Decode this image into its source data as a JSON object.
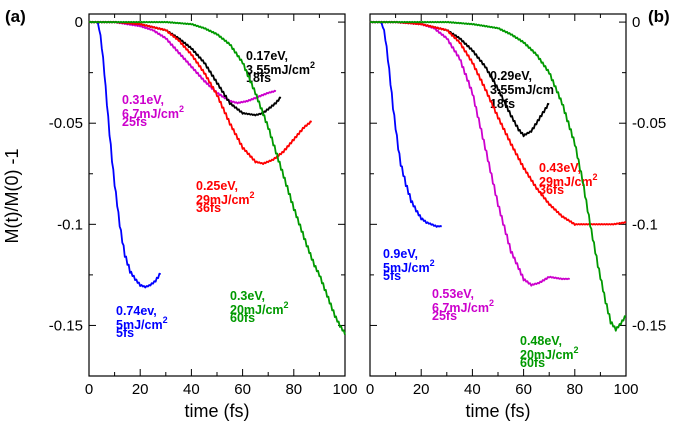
{
  "chart_data": [
    {
      "panel": "(a)",
      "type": "line",
      "xlabel": "time (fs)",
      "ylabel": "M(t)/M(0) -1",
      "xlim": [
        0,
        100
      ],
      "ylim": [
        -0.175,
        0.004
      ],
      "xticks": [
        0,
        20,
        40,
        60,
        80,
        100
      ],
      "yticks": [
        0,
        -0.05,
        -0.1,
        -0.15
      ],
      "ytick_labels": [
        "0",
        "-0.05",
        "-0.1",
        "-0.15"
      ],
      "ytick_side": "left",
      "grid": false,
      "series": [
        {
          "color": "#0000ff",
          "label_lines": [
            "0.74ev,",
            "5mJ/cm",
            "5fs"
          ],
          "label_sup": "2",
          "points": [
            [
              0,
              0
            ],
            [
              3,
              0
            ],
            [
              4,
              -0.003
            ],
            [
              5,
              -0.012
            ],
            [
              6,
              -0.025
            ],
            [
              7,
              -0.04
            ],
            [
              8,
              -0.055
            ],
            [
              9,
              -0.068
            ],
            [
              10,
              -0.08
            ],
            [
              11,
              -0.09
            ],
            [
              12,
              -0.1
            ],
            [
              13,
              -0.108
            ],
            [
              14,
              -0.115
            ],
            [
              16,
              -0.123
            ],
            [
              18,
              -0.127
            ],
            [
              20,
              -0.13
            ],
            [
              22,
              -0.131
            ],
            [
              24,
              -0.13
            ],
            [
              26,
              -0.128
            ],
            [
              27,
              -0.126
            ],
            [
              28,
              -0.124
            ]
          ]
        },
        {
          "color": "#cc00cc",
          "label_lines": [
            "0.31eV,",
            "6.7mJ/cm",
            "25fs"
          ],
          "label_sup": "2",
          "points": [
            [
              0,
              0
            ],
            [
              10,
              0
            ],
            [
              15,
              -0.001
            ],
            [
              20,
              -0.002
            ],
            [
              25,
              -0.004
            ],
            [
              30,
              -0.008
            ],
            [
              35,
              -0.015
            ],
            [
              40,
              -0.022
            ],
            [
              45,
              -0.029
            ],
            [
              50,
              -0.035
            ],
            [
              55,
              -0.039
            ],
            [
              58,
              -0.04
            ],
            [
              62,
              -0.039
            ],
            [
              66,
              -0.037
            ],
            [
              70,
              -0.035
            ],
            [
              73,
              -0.034
            ]
          ]
        },
        {
          "color": "#000000",
          "label_lines": [
            "0.17eV,",
            "3.55mJ/cm",
            "18fs"
          ],
          "label_sup": "2",
          "points": [
            [
              0,
              0
            ],
            [
              10,
              0
            ],
            [
              20,
              -0.001
            ],
            [
              30,
              -0.004
            ],
            [
              35,
              -0.008
            ],
            [
              40,
              -0.013
            ],
            [
              45,
              -0.02
            ],
            [
              50,
              -0.03
            ],
            [
              55,
              -0.04
            ],
            [
              60,
              -0.045
            ],
            [
              65,
              -0.046
            ],
            [
              68,
              -0.045
            ],
            [
              70,
              -0.043
            ],
            [
              73,
              -0.04
            ],
            [
              75,
              -0.037
            ]
          ]
        },
        {
          "color": "#ff0000",
          "label_lines": [
            "0.25eV,",
            "29mJ/cm",
            "36fs"
          ],
          "label_sup": "2",
          "points": [
            [
              0,
              0
            ],
            [
              10,
              0
            ],
            [
              20,
              -0.001
            ],
            [
              30,
              -0.004
            ],
            [
              35,
              -0.009
            ],
            [
              40,
              -0.016
            ],
            [
              45,
              -0.025
            ],
            [
              50,
              -0.036
            ],
            [
              55,
              -0.05
            ],
            [
              60,
              -0.062
            ],
            [
              65,
              -0.069
            ],
            [
              68,
              -0.07
            ],
            [
              72,
              -0.068
            ],
            [
              76,
              -0.064
            ],
            [
              80,
              -0.058
            ],
            [
              84,
              -0.052
            ],
            [
              87,
              -0.049
            ]
          ]
        },
        {
          "color": "#009900",
          "label_lines": [
            "0.3eV,",
            "20mJ/cm",
            "60fs"
          ],
          "label_sup": "2",
          "points": [
            [
              0,
              0
            ],
            [
              30,
              0
            ],
            [
              40,
              -0.001
            ],
            [
              45,
              -0.003
            ],
            [
              50,
              -0.006
            ],
            [
              55,
              -0.011
            ],
            [
              60,
              -0.02
            ],
            [
              65,
              -0.035
            ],
            [
              70,
              -0.052
            ],
            [
              75,
              -0.072
            ],
            [
              80,
              -0.092
            ],
            [
              85,
              -0.11
            ],
            [
              88,
              -0.12
            ],
            [
              90,
              -0.125
            ],
            [
              93,
              -0.135
            ],
            [
              96,
              -0.145
            ],
            [
              98,
              -0.15
            ],
            [
              100,
              -0.154
            ]
          ]
        }
      ]
    },
    {
      "panel": "(b)",
      "type": "line",
      "xlabel": "time (fs)",
      "ylabel": "",
      "xlim": [
        0,
        100
      ],
      "ylim": [
        -0.175,
        0.004
      ],
      "xticks": [
        0,
        20,
        40,
        60,
        80,
        100
      ],
      "yticks": [
        0,
        -0.05,
        -0.1,
        -0.15
      ],
      "ytick_labels": [
        "0",
        "-0.05",
        "-0.1",
        "-0.15"
      ],
      "ytick_side": "right",
      "grid": false,
      "series": [
        {
          "color": "#0000ff",
          "label_lines": [
            "0.9eV,",
            "5mJ/cm",
            "5fs"
          ],
          "label_sup": "2",
          "points": [
            [
              0,
              0
            ],
            [
              4,
              0
            ],
            [
              5,
              -0.002
            ],
            [
              6,
              -0.008
            ],
            [
              7,
              -0.018
            ],
            [
              8,
              -0.03
            ],
            [
              9,
              -0.042
            ],
            [
              10,
              -0.052
            ],
            [
              11,
              -0.062
            ],
            [
              12,
              -0.07
            ],
            [
              14,
              -0.08
            ],
            [
              16,
              -0.088
            ],
            [
              18,
              -0.093
            ],
            [
              20,
              -0.097
            ],
            [
              22,
              -0.099
            ],
            [
              24,
              -0.1
            ],
            [
              26,
              -0.101
            ],
            [
              28,
              -0.101
            ]
          ]
        },
        {
          "color": "#000000",
          "label_lines": [
            "0.29eV,",
            "3.55mJ/cm",
            "18fs"
          ],
          "label_sup": "",
          "points": [
            [
              0,
              0
            ],
            [
              10,
              0
            ],
            [
              20,
              -0.001
            ],
            [
              30,
              -0.004
            ],
            [
              35,
              -0.008
            ],
            [
              40,
              -0.014
            ],
            [
              45,
              -0.022
            ],
            [
              50,
              -0.033
            ],
            [
              55,
              -0.046
            ],
            [
              58,
              -0.053
            ],
            [
              60,
              -0.056
            ],
            [
              63,
              -0.054
            ],
            [
              66,
              -0.048
            ],
            [
              70,
              -0.04
            ]
          ]
        },
        {
          "color": "#cc00cc",
          "label_lines": [
            "0.53eV,",
            "6.7mJ/cm",
            "25fs"
          ],
          "label_sup": "2",
          "points": [
            [
              0,
              0
            ],
            [
              10,
              0
            ],
            [
              20,
              -0.001
            ],
            [
              25,
              -0.003
            ],
            [
              30,
              -0.008
            ],
            [
              35,
              -0.018
            ],
            [
              40,
              -0.035
            ],
            [
              45,
              -0.062
            ],
            [
              50,
              -0.09
            ],
            [
              55,
              -0.113
            ],
            [
              60,
              -0.127
            ],
            [
              63,
              -0.13
            ],
            [
              66,
              -0.129
            ],
            [
              70,
              -0.126
            ],
            [
              75,
              -0.127
            ],
            [
              78,
              -0.127
            ]
          ]
        },
        {
          "color": "#ff0000",
          "label_lines": [
            "0.43eV,",
            "29mJ/cm",
            "36fs"
          ],
          "label_sup": "2",
          "points": [
            [
              0,
              0
            ],
            [
              10,
              0
            ],
            [
              20,
              -0.001
            ],
            [
              30,
              -0.004
            ],
            [
              35,
              -0.01
            ],
            [
              40,
              -0.02
            ],
            [
              45,
              -0.033
            ],
            [
              50,
              -0.047
            ],
            [
              55,
              -0.06
            ],
            [
              60,
              -0.072
            ],
            [
              65,
              -0.082
            ],
            [
              70,
              -0.09
            ],
            [
              75,
              -0.096
            ],
            [
              80,
              -0.1
            ],
            [
              85,
              -0.1
            ],
            [
              90,
              -0.1
            ],
            [
              95,
              -0.1
            ],
            [
              100,
              -0.099
            ]
          ]
        },
        {
          "color": "#009900",
          "label_lines": [
            "0.48eV,",
            "20mJ/cm",
            "60fs"
          ],
          "label_sup": "2",
          "points": [
            [
              0,
              0
            ],
            [
              30,
              0
            ],
            [
              40,
              -0.001
            ],
            [
              50,
              -0.003
            ],
            [
              55,
              -0.006
            ],
            [
              60,
              -0.01
            ],
            [
              65,
              -0.016
            ],
            [
              70,
              -0.025
            ],
            [
              75,
              -0.04
            ],
            [
              80,
              -0.06
            ],
            [
              83,
              -0.078
            ],
            [
              86,
              -0.1
            ],
            [
              89,
              -0.12
            ],
            [
              92,
              -0.138
            ],
            [
              94,
              -0.148
            ],
            [
              96,
              -0.152
            ],
            [
              98,
              -0.149
            ],
            [
              100,
              -0.145
            ]
          ]
        }
      ]
    }
  ]
}
